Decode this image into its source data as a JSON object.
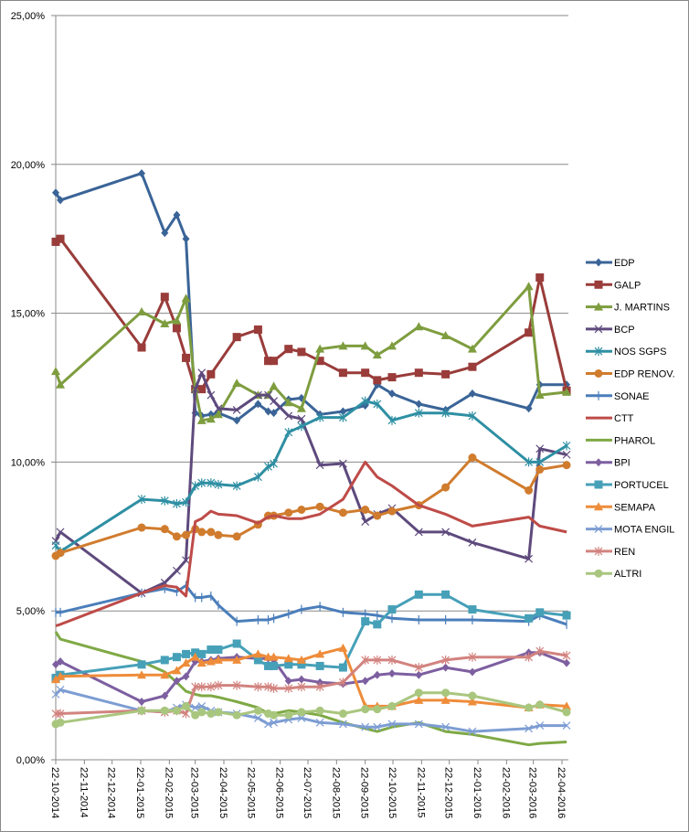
{
  "chart_data": {
    "type": "line",
    "title": "",
    "xlabel": "",
    "ylabel": "",
    "ylim": [
      0,
      25
    ],
    "yticks": [
      "0,00%",
      "5,00%",
      "10,00%",
      "15,00%",
      "20,00%",
      "25,00%"
    ],
    "ytick_values": [
      0,
      5,
      10,
      15,
      20,
      25
    ],
    "xlim_days": [
      0,
      548
    ],
    "xticks": [
      "22-10-2014",
      "22-11-2014",
      "22-12-2014",
      "22-01-2015",
      "22-02-2015",
      "22-03-2015",
      "22-04-2015",
      "22-05-2015",
      "22-06-2015",
      "22-07-2015",
      "22-08-2015",
      "22-09-2015",
      "22-10-2015",
      "22-11-2015",
      "22-12-2015",
      "22-01-2016",
      "22-02-2016",
      "22-03-2016",
      "22-04-2016"
    ],
    "xtick_days": [
      0,
      31,
      61,
      92,
      123,
      151,
      182,
      212,
      243,
      273,
      304,
      335,
      365,
      396,
      426,
      457,
      488,
      517,
      548
    ],
    "grid": "horizontal",
    "legend": "right",
    "x_days": [
      0,
      5,
      93,
      118,
      131,
      141,
      151,
      158,
      168,
      176,
      196,
      219,
      230,
      236,
      252,
      266,
      286,
      311,
      335,
      348,
      364,
      393,
      422,
      451,
      512,
      524,
      553
    ],
    "series": [
      {
        "name": "EDP",
        "color": "#3A6497",
        "marker": "diamond",
        "values": [
          19.05,
          18.8,
          19.7,
          17.7,
          18.3,
          17.5,
          11.65,
          11.55,
          11.6,
          11.65,
          11.4,
          11.95,
          11.7,
          11.65,
          12.1,
          12.15,
          11.6,
          11.7,
          11.9,
          12.6,
          12.3,
          11.95,
          11.75,
          12.3,
          11.8,
          12.6,
          12.6
        ]
      },
      {
        "name": "GALP",
        "color": "#993C3A",
        "marker": "square",
        "values": [
          17.4,
          17.5,
          13.85,
          15.55,
          14.5,
          13.5,
          12.45,
          12.45,
          12.95,
          null,
          14.2,
          14.45,
          13.4,
          13.4,
          13.8,
          13.7,
          13.4,
          13.0,
          13.0,
          12.75,
          12.85,
          13.0,
          12.95,
          13.2,
          14.35,
          16.2,
          12.4
        ]
      },
      {
        "name": "J. MARTINS",
        "color": "#7E9D3F",
        "marker": "triangle",
        "values": [
          13.05,
          12.6,
          15.05,
          14.65,
          14.75,
          15.5,
          12.45,
          11.4,
          11.45,
          11.6,
          12.65,
          12.25,
          12.25,
          12.55,
          12.0,
          11.8,
          13.8,
          13.9,
          13.9,
          13.6,
          13.9,
          14.55,
          14.25,
          13.8,
          15.9,
          12.25,
          12.35
        ]
      },
      {
        "name": "BCP",
        "color": "#5E4A7D",
        "marker": "x",
        "values": [
          7.35,
          7.65,
          5.6,
          5.95,
          6.35,
          6.7,
          12.45,
          13.0,
          12.25,
          11.8,
          11.75,
          12.25,
          12.25,
          12.05,
          11.55,
          11.45,
          9.9,
          9.95,
          8.0,
          8.25,
          8.45,
          7.65,
          7.65,
          7.3,
          6.75,
          10.45,
          10.25
        ]
      },
      {
        "name": "NOS SGPS",
        "color": "#2E8FA3",
        "marker": "asterisk",
        "values": [
          7.2,
          7.0,
          8.75,
          8.7,
          8.6,
          8.65,
          9.2,
          9.3,
          9.3,
          9.25,
          9.2,
          9.5,
          9.85,
          9.95,
          11.0,
          11.2,
          11.5,
          11.5,
          12.05,
          11.95,
          11.4,
          11.65,
          11.65,
          11.55,
          10.0,
          10.0,
          10.55
        ]
      },
      {
        "name": "EDP RENOV.",
        "color": "#D07C2E",
        "marker": "circle",
        "values": [
          6.85,
          6.95,
          7.8,
          7.75,
          7.5,
          7.55,
          7.75,
          7.65,
          7.65,
          7.55,
          7.5,
          7.9,
          8.2,
          8.2,
          8.3,
          8.4,
          8.5,
          8.3,
          8.4,
          8.2,
          8.35,
          8.55,
          9.15,
          10.15,
          9.05,
          9.75,
          9.9
        ]
      },
      {
        "name": "SONAE",
        "color": "#4A7EBB",
        "marker": "plus",
        "values": [
          4.95,
          4.95,
          5.6,
          5.75,
          5.65,
          5.85,
          5.45,
          5.45,
          5.5,
          5.2,
          4.65,
          4.7,
          4.7,
          4.75,
          4.9,
          5.05,
          5.15,
          4.95,
          4.9,
          4.85,
          4.75,
          4.7,
          4.7,
          4.7,
          4.65,
          4.85,
          4.55
        ]
      },
      {
        "name": "CTT",
        "color": "#BE4B48",
        "marker": "none",
        "values": [
          4.5,
          4.55,
          5.6,
          5.85,
          5.8,
          5.5,
          8.0,
          8.1,
          8.35,
          8.25,
          8.2,
          7.95,
          8.15,
          8.2,
          8.1,
          8.1,
          8.25,
          8.75,
          10.0,
          9.5,
          9.2,
          8.55,
          8.25,
          7.85,
          8.15,
          7.85,
          7.65
        ]
      },
      {
        "name": "PHAROL",
        "color": "#7FA945",
        "marker": "none",
        "values": [
          4.3,
          4.05,
          3.3,
          2.95,
          2.6,
          2.3,
          2.2,
          2.15,
          2.15,
          2.1,
          1.95,
          1.75,
          1.55,
          1.55,
          1.65,
          1.6,
          1.5,
          1.25,
          1.05,
          0.95,
          1.1,
          1.25,
          0.95,
          0.85,
          0.5,
          0.55,
          0.6
        ]
      },
      {
        "name": "BPI",
        "color": "#7D5FA0",
        "marker": "diamond",
        "values": [
          3.2,
          3.3,
          1.95,
          2.15,
          2.65,
          2.8,
          3.3,
          3.3,
          3.35,
          3.4,
          3.45,
          3.4,
          3.4,
          3.35,
          2.65,
          2.7,
          2.6,
          2.55,
          2.65,
          2.85,
          2.9,
          2.85,
          3.1,
          2.95,
          3.6,
          3.6,
          3.25
        ]
      },
      {
        "name": "PORTUCEL",
        "color": "#46A0B8",
        "marker": "square",
        "values": [
          2.75,
          2.85,
          3.2,
          3.35,
          3.45,
          3.55,
          3.6,
          3.55,
          3.7,
          3.7,
          3.9,
          3.35,
          3.15,
          3.15,
          3.2,
          3.2,
          3.15,
          3.1,
          4.65,
          4.55,
          5.05,
          5.55,
          5.55,
          5.05,
          4.75,
          4.95,
          4.85
        ]
      },
      {
        "name": "SEMAPA",
        "color": "#EE8C3A",
        "marker": "triangle",
        "values": [
          2.7,
          2.8,
          2.85,
          2.85,
          3.0,
          3.25,
          3.45,
          3.25,
          3.3,
          3.35,
          3.35,
          3.55,
          3.45,
          3.45,
          3.4,
          3.35,
          3.55,
          3.75,
          1.8,
          1.8,
          1.8,
          2.0,
          2.0,
          1.95,
          1.75,
          1.85,
          1.8
        ]
      },
      {
        "name": "MOTA ENGIL",
        "color": "#7D9DD3",
        "marker": "x",
        "values": [
          2.2,
          2.35,
          1.65,
          1.6,
          1.75,
          1.85,
          1.75,
          1.8,
          1.65,
          1.6,
          1.55,
          1.4,
          1.2,
          1.25,
          1.35,
          1.4,
          1.25,
          1.2,
          1.1,
          1.1,
          1.2,
          1.2,
          1.1,
          0.95,
          1.05,
          1.15,
          1.15
        ]
      },
      {
        "name": "REN",
        "color": "#D2837F",
        "marker": "asterisk",
        "values": [
          1.55,
          1.55,
          1.65,
          1.6,
          1.65,
          1.55,
          2.45,
          2.45,
          2.45,
          2.5,
          2.5,
          2.45,
          2.45,
          2.4,
          2.4,
          2.45,
          2.45,
          2.6,
          3.35,
          3.35,
          3.35,
          3.1,
          3.35,
          3.45,
          3.45,
          3.65,
          3.5
        ]
      },
      {
        "name": "ALTRI",
        "color": "#A9C67E",
        "marker": "circle",
        "values": [
          1.2,
          1.25,
          1.65,
          1.65,
          1.65,
          1.8,
          1.5,
          1.6,
          1.55,
          1.6,
          1.5,
          1.65,
          1.55,
          1.5,
          1.5,
          1.6,
          1.65,
          1.55,
          1.7,
          1.7,
          1.8,
          2.25,
          2.25,
          2.15,
          1.75,
          1.85,
          1.6
        ]
      }
    ]
  }
}
